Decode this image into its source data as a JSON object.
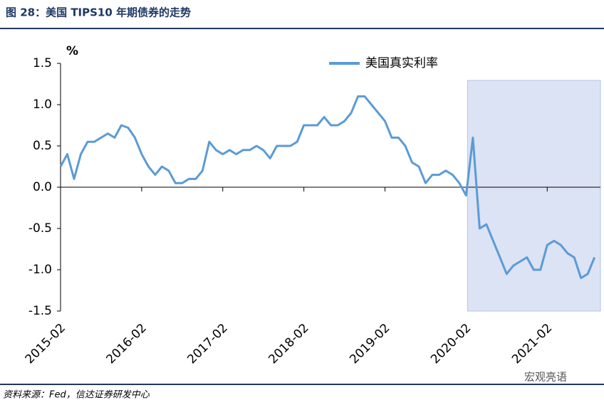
{
  "chart_data": {
    "type": "line",
    "title": "图 28：美国 TIPS10 年期债券的走势",
    "source": "资料来源：Fed，信达证券研发中心",
    "watermark": "宏观亮语",
    "y_label": "%",
    "x": [
      "2015-02",
      "2015-03",
      "2015-04",
      "2015-05",
      "2015-06",
      "2015-07",
      "2015-08",
      "2015-09",
      "2015-10",
      "2015-11",
      "2015-12",
      "2016-01",
      "2016-02",
      "2016-03",
      "2016-04",
      "2016-05",
      "2016-06",
      "2016-07",
      "2016-08",
      "2016-09",
      "2016-10",
      "2016-11",
      "2016-12",
      "2017-01",
      "2017-02",
      "2017-03",
      "2017-04",
      "2017-05",
      "2017-06",
      "2017-07",
      "2017-08",
      "2017-09",
      "2017-10",
      "2017-11",
      "2017-12",
      "2018-01",
      "2018-02",
      "2018-03",
      "2018-04",
      "2018-05",
      "2018-06",
      "2018-07",
      "2018-08",
      "2018-09",
      "2018-10",
      "2018-11",
      "2018-12",
      "2019-01",
      "2019-02",
      "2019-03",
      "2019-04",
      "2019-05",
      "2019-06",
      "2019-07",
      "2019-08",
      "2019-09",
      "2019-10",
      "2019-11",
      "2019-12",
      "2020-01",
      "2020-02",
      "2020-03",
      "2020-04",
      "2020-05",
      "2020-06",
      "2020-07",
      "2020-08",
      "2020-09",
      "2020-10",
      "2020-11",
      "2020-12",
      "2021-01",
      "2021-02",
      "2021-03",
      "2021-04",
      "2021-05",
      "2021-06",
      "2021-07",
      "2021-08",
      "2021-09"
    ],
    "series": [
      {
        "name": "美国真实利率",
        "color": "#5b9bd5",
        "values": [
          0.25,
          0.4,
          0.1,
          0.4,
          0.55,
          0.55,
          0.6,
          0.65,
          0.6,
          0.75,
          0.72,
          0.6,
          0.4,
          0.25,
          0.15,
          0.25,
          0.2,
          0.05,
          0.05,
          0.1,
          0.1,
          0.2,
          0.55,
          0.45,
          0.4,
          0.45,
          0.4,
          0.45,
          0.45,
          0.5,
          0.45,
          0.35,
          0.5,
          0.5,
          0.5,
          0.55,
          0.75,
          0.75,
          0.75,
          0.85,
          0.75,
          0.75,
          0.8,
          0.9,
          1.1,
          1.1,
          1.0,
          0.9,
          0.8,
          0.6,
          0.6,
          0.5,
          0.3,
          0.25,
          0.05,
          0.15,
          0.15,
          0.2,
          0.15,
          0.05,
          -0.1,
          0.6,
          -0.5,
          -0.45,
          -0.65,
          -0.85,
          -1.05,
          -0.95,
          -0.9,
          -0.85,
          -1.0,
          -1.0,
          -0.7,
          -0.65,
          -0.7,
          -0.8,
          -0.85,
          -1.1,
          -1.05,
          -0.85
        ]
      }
    ],
    "xticks": [
      "2015-02",
      "2016-02",
      "2017-02",
      "2018-02",
      "2019-02",
      "2020-02",
      "2021-02"
    ],
    "ylim": [
      -1.5,
      1.5
    ],
    "yticks": [
      {
        "value": 1.5,
        "label": "1.5"
      },
      {
        "value": 1,
        "label": "1.0"
      },
      {
        "value": 0.5,
        "label": "0.5"
      },
      {
        "value": 0,
        "label": "0.0"
      },
      {
        "value": -0.5,
        "label": "-0.5"
      },
      {
        "value": -1,
        "label": "-1.0"
      },
      {
        "value": -1.5,
        "label": "-1.5"
      }
    ],
    "highlight": [
      "2020-02",
      "2021-09"
    ],
    "legend": "top-right"
  }
}
